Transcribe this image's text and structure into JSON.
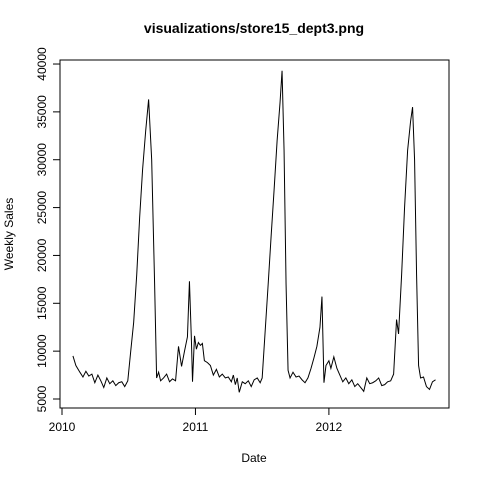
{
  "chart_data": {
    "type": "line",
    "title": "visualizations/store15_dept3.png",
    "x_label": "Date",
    "y_label": "Weekly Sales",
    "xlim": [
      2009.985,
      2012.9
    ],
    "ylim": [
      4060,
      40420
    ],
    "xticks": [
      2010,
      2011,
      2012
    ],
    "yticks": [
      5000,
      10000,
      15000,
      20000,
      25000,
      30000,
      35000,
      40000
    ],
    "grid": false,
    "x": [
      2010.082,
      2010.104,
      2010.134,
      2010.157,
      2010.179,
      2010.201,
      2010.224,
      2010.246,
      2010.269,
      2010.291,
      2010.313,
      2010.336,
      2010.358,
      2010.381,
      2010.403,
      2010.425,
      2010.448,
      2010.47,
      2010.493,
      2010.515,
      2010.537,
      2010.56,
      2010.582,
      2010.604,
      2010.627,
      2010.649,
      2010.672,
      2010.694,
      2010.709,
      2010.724,
      2010.739,
      2010.761,
      2010.784,
      2010.806,
      2010.828,
      2010.851,
      2010.873,
      2010.896,
      2010.918,
      2010.94,
      2010.955,
      2010.97,
      2010.978,
      2010.993,
      2011.007,
      2011.022,
      2011.037,
      2011.052,
      2011.067,
      2011.09,
      2011.112,
      2011.134,
      2011.157,
      2011.179,
      2011.201,
      2011.224,
      2011.246,
      2011.269,
      2011.284,
      2011.299,
      2011.313,
      2011.328,
      2011.351,
      2011.373,
      2011.396,
      2011.418,
      2011.44,
      2011.463,
      2011.485,
      2011.5,
      2011.522,
      2011.545,
      2011.567,
      2011.59,
      2011.612,
      2011.634,
      2011.649,
      2011.664,
      2011.679,
      2011.694,
      2011.709,
      2011.731,
      2011.754,
      2011.776,
      2011.799,
      2011.821,
      2011.843,
      2011.866,
      2011.888,
      2011.91,
      2011.933,
      2011.948,
      2011.963,
      2011.978,
      2012.0,
      2012.015,
      2012.037,
      2012.06,
      2012.082,
      2012.104,
      2012.127,
      2012.149,
      2012.172,
      2012.194,
      2012.216,
      2012.239,
      2012.261,
      2012.284,
      2012.306,
      2012.328,
      2012.351,
      2012.373,
      2012.396,
      2012.418,
      2012.44,
      2012.463,
      2012.485,
      2012.507,
      2012.522,
      2012.545,
      2012.567,
      2012.59,
      2012.612,
      2012.627,
      2012.642,
      2012.657,
      2012.672,
      2012.687,
      2012.709,
      2012.731,
      2012.754,
      2012.776,
      2012.799
    ],
    "series": [
      {
        "name": "Weekly Sales",
        "color": "#000000",
        "values": [
          9500,
          8500,
          7800,
          7300,
          7900,
          7400,
          7600,
          6700,
          7500,
          6900,
          6200,
          7200,
          6600,
          6900,
          6400,
          6700,
          6800,
          6300,
          6900,
          10000,
          13000,
          18000,
          24000,
          29000,
          33000,
          36300,
          30000,
          17000,
          7200,
          7800,
          6900,
          7200,
          7600,
          6800,
          7100,
          6900,
          10500,
          8400,
          10000,
          11500,
          17300,
          11000,
          6800,
          11600,
          10200,
          10900,
          10600,
          10800,
          9000,
          8800,
          8500,
          7500,
          8100,
          7300,
          7600,
          7200,
          7300,
          6800,
          7500,
          6500,
          7200,
          5700,
          6800,
          6600,
          6900,
          6300,
          7000,
          7200,
          6700,
          7200,
          12000,
          17000,
          22000,
          27000,
          32000,
          36000,
          39300,
          31000,
          17000,
          8000,
          7200,
          7800,
          7300,
          7400,
          7000,
          6700,
          7200,
          8200,
          9300,
          10500,
          12500,
          15700,
          6700,
          8500,
          9000,
          8200,
          9400,
          8200,
          7500,
          6800,
          7200,
          6600,
          7000,
          6300,
          6600,
          6200,
          5800,
          7200,
          6600,
          6700,
          6900,
          7200,
          6400,
          6500,
          6800,
          6900,
          7600,
          13300,
          11800,
          18000,
          25000,
          31000,
          34000,
          35500,
          30000,
          18000,
          8500,
          7200,
          7300,
          6300,
          6000,
          6800,
          7000
        ]
      }
    ]
  }
}
